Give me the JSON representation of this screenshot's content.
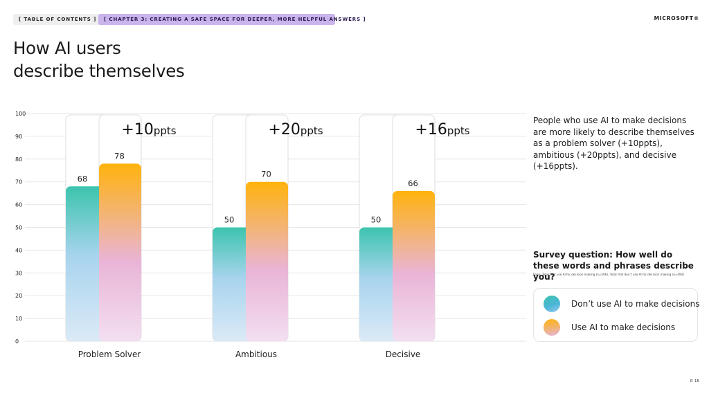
{
  "header": {
    "toc_label": "[   TABLE OF CONTENTS   ]",
    "chapter_label": "[     CHAPTER 3: CREATING A SAFE SPACE FOR DEEPER, MORE HELPFUL ANSWERS     ]",
    "brand": "MICROSOFT®"
  },
  "title_line1": "How AI users",
  "title_line2": "describe themselves",
  "chart_data": {
    "type": "bar",
    "categories": [
      "Problem Solver",
      "Ambitious",
      "Decisive"
    ],
    "series": [
      {
        "name": "Don’t use AI to make decisions",
        "values": [
          68,
          50,
          50
        ]
      },
      {
        "name": "Use AI to make decisions",
        "values": [
          78,
          70,
          66
        ]
      }
    ],
    "differences": [
      {
        "value": "+10",
        "unit": "ppts"
      },
      {
        "value": "+20",
        "unit": "ppts"
      },
      {
        "value": "+16",
        "unit": "ppts"
      }
    ],
    "yticks": [
      "0",
      "10",
      "20",
      "30",
      "40",
      "50",
      "60",
      "70",
      "80",
      "90",
      "100"
    ],
    "ylim": [
      0,
      100
    ],
    "grid": true,
    "legend_placement": "bottom-right",
    "colors": {
      "no_ai_top": "#3cc4ad",
      "no_ai_mid": "#a8d4ee",
      "no_ai_bottom": "#dbeaf6",
      "ai_top": "#ffb30d",
      "ai_mid": "#e9b4d6",
      "ai_bottom": "#f3dff1"
    }
  },
  "description": "People who use AI to make decisions are more likely to describe themselves as a problem solver (+10ppts), ambitious (+20ppts), and decisive (+16ppts).",
  "survey_question": "Survey question: How well do these words and phrases describe you?",
  "base_note": "Base: Total that use AI for decision making (n=506), Total that don’t use AI for decision making (n=494)",
  "legend": {
    "no_ai": "Don’t use AI to make decisions",
    "ai": "Use AI to make decisions"
  },
  "page_number": "P. 15"
}
